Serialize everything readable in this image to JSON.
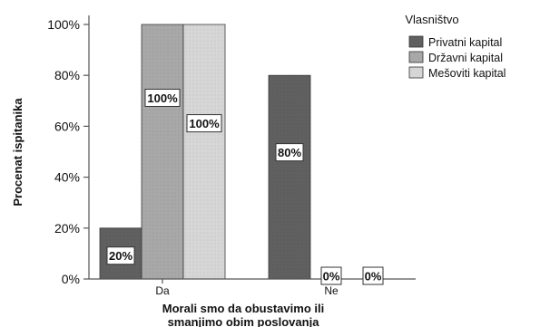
{
  "chart_data": {
    "type": "bar",
    "ylabel": "Procenat ispitanika",
    "xlabel_lines": [
      "Morali smo da obustavimo ili",
      "smanjimo obim poslovanja"
    ],
    "categories": [
      "Da",
      "Ne"
    ],
    "ylim": [
      0,
      100
    ],
    "yticks": [
      "0%",
      "20%",
      "40%",
      "60%",
      "80%",
      "100%"
    ],
    "legend_title": "Vlasništvo",
    "legend_position": "top-right",
    "series": [
      {
        "name": "Privatni kapital",
        "values": [
          20,
          80
        ],
        "labels": [
          "20%",
          "80%"
        ],
        "color": "#606060"
      },
      {
        "name": "Državni kapital",
        "values": [
          100,
          0
        ],
        "labels": [
          "100%",
          "0%"
        ],
        "color": "#a8a8a8"
      },
      {
        "name": "Mešoviti kapital",
        "values": [
          100,
          0
        ],
        "labels": [
          "100%",
          "0%"
        ],
        "color": "#d6d6d6"
      }
    ]
  }
}
